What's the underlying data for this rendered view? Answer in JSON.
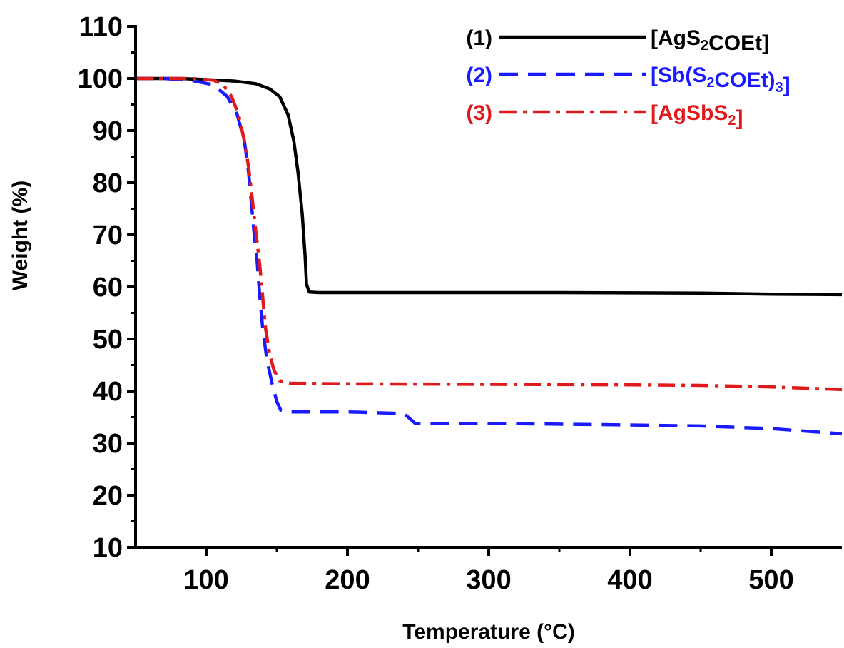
{
  "chart_data": {
    "type": "line",
    "xlabel": "Temperature (°C)",
    "ylabel": "Weight (%)",
    "xlim": [
      50,
      550
    ],
    "ylim": [
      10,
      110
    ],
    "xticks": [
      100,
      200,
      300,
      400,
      500
    ],
    "yticks": [
      10,
      20,
      30,
      40,
      50,
      60,
      70,
      80,
      90,
      100,
      110
    ],
    "grid": false,
    "legend_position": "top-right",
    "series": [
      {
        "name": "[AgS2COEt]",
        "legend_number": "(1)",
        "color": "#000000",
        "dash": "solid",
        "points": [
          [
            50,
            100
          ],
          [
            80,
            100
          ],
          [
            100,
            99.8
          ],
          [
            120,
            99.5
          ],
          [
            135,
            99
          ],
          [
            145,
            98
          ],
          [
            152,
            96.5
          ],
          [
            158,
            93
          ],
          [
            162,
            88
          ],
          [
            165,
            82
          ],
          [
            168,
            74
          ],
          [
            170,
            66
          ],
          [
            171,
            60.5
          ],
          [
            173,
            59
          ],
          [
            180,
            58.9
          ],
          [
            250,
            58.9
          ],
          [
            350,
            58.9
          ],
          [
            450,
            58.8
          ],
          [
            500,
            58.6
          ],
          [
            550,
            58.5
          ]
        ]
      },
      {
        "name": "[Sb(S2COEt)3]",
        "legend_number": "(2)",
        "color": "#1a1aff",
        "dash": "dashed",
        "points": [
          [
            50,
            100
          ],
          [
            70,
            100
          ],
          [
            90,
            99.6
          ],
          [
            105,
            98.8
          ],
          [
            115,
            96.5
          ],
          [
            122,
            93
          ],
          [
            127,
            88
          ],
          [
            130,
            82
          ],
          [
            132,
            76
          ],
          [
            134,
            70
          ],
          [
            136,
            65
          ],
          [
            138,
            58
          ],
          [
            140,
            52
          ],
          [
            143,
            46
          ],
          [
            147,
            41
          ],
          [
            150,
            38
          ],
          [
            153,
            36.2
          ],
          [
            160,
            36
          ],
          [
            200,
            36
          ],
          [
            240,
            35.7
          ],
          [
            248,
            33.8
          ],
          [
            300,
            33.8
          ],
          [
            400,
            33.5
          ],
          [
            450,
            33.3
          ],
          [
            500,
            32.8
          ],
          [
            550,
            31.8
          ]
        ]
      },
      {
        "name": "[AgSbS2]",
        "legend_number": "(3)",
        "color": "#e0191b",
        "dash": "dashdot",
        "points": [
          [
            50,
            100
          ],
          [
            70,
            100
          ],
          [
            90,
            100
          ],
          [
            105,
            99.7
          ],
          [
            112,
            98.8
          ],
          [
            118,
            96.5
          ],
          [
            123,
            93
          ],
          [
            127,
            88
          ],
          [
            130,
            83
          ],
          [
            133,
            76
          ],
          [
            135,
            71
          ],
          [
            138,
            64
          ],
          [
            140,
            58
          ],
          [
            142,
            52
          ],
          [
            145,
            47
          ],
          [
            148,
            44
          ],
          [
            152,
            42
          ],
          [
            160,
            41.5
          ],
          [
            200,
            41.4
          ],
          [
            300,
            41.3
          ],
          [
            400,
            41.2
          ],
          [
            450,
            41.1
          ],
          [
            500,
            40.8
          ],
          [
            550,
            40.3
          ]
        ]
      }
    ]
  }
}
